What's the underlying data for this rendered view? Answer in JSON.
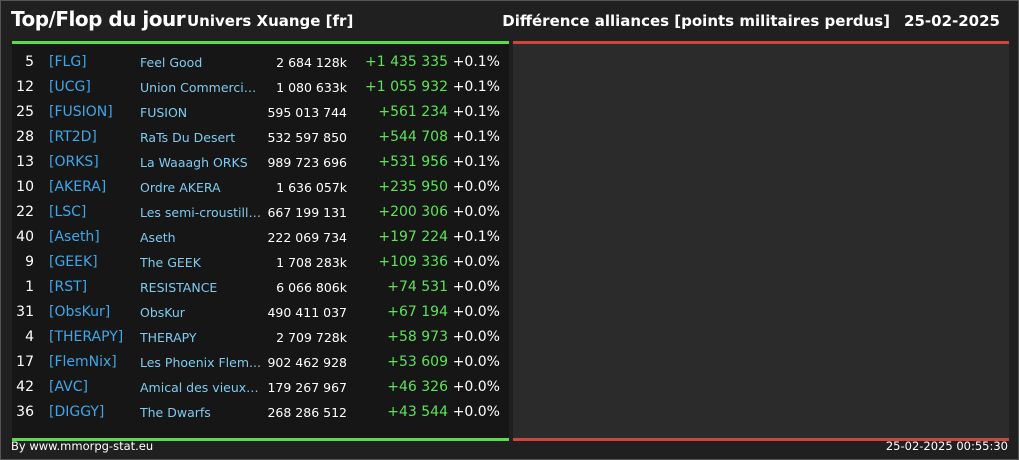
{
  "header": {
    "title": "Top/Flop du jour",
    "universe": "Univers Xuange [fr]",
    "ranking_title": "Différence alliances [points militaires perdus]",
    "date": "25-02-2025"
  },
  "top_rows": [
    {
      "rank": "5",
      "tag": "[FLG]",
      "name": "Feel Good",
      "points": "2 684 128k",
      "diff": "+1 435 335",
      "pct": "+0.1%"
    },
    {
      "rank": "12",
      "tag": "[UCG]",
      "name": "Union Commerciale...",
      "points": "1 080 633k",
      "diff": "+1 055 932",
      "pct": "+0.1%"
    },
    {
      "rank": "25",
      "tag": "[FUSION]",
      "name": "FUSION",
      "points": "595 013 744",
      "diff": "+561 234",
      "pct": "+0.1%"
    },
    {
      "rank": "28",
      "tag": "[RT2D]",
      "name": "RaTs Du Desert",
      "points": "532 597 850",
      "diff": "+544 708",
      "pct": "+0.1%"
    },
    {
      "rank": "13",
      "tag": "[ORKS]",
      "name": "La Waaagh ORKS",
      "points": "989 723 696",
      "diff": "+531 956",
      "pct": "+0.1%"
    },
    {
      "rank": "10",
      "tag": "[AKERA]",
      "name": "Ordre AKERA",
      "points": "1 636 057k",
      "diff": "+235 950",
      "pct": "+0.0%"
    },
    {
      "rank": "22",
      "tag": "[LSC]",
      "name": "Les semi-croustilla...",
      "points": "667 199 131",
      "diff": "+200 306",
      "pct": "+0.0%"
    },
    {
      "rank": "40",
      "tag": "[Aseth]",
      "name": "Aseth",
      "points": "222 069 734",
      "diff": "+197 224",
      "pct": "+0.1%"
    },
    {
      "rank": "9",
      "tag": "[GEEK]",
      "name": "The GEEK",
      "points": "1 708 283k",
      "diff": "+109 336",
      "pct": "+0.0%"
    },
    {
      "rank": "1",
      "tag": "[RST]",
      "name": "RESISTANCE",
      "points": "6 066 806k",
      "diff": "+74 531",
      "pct": "+0.0%"
    },
    {
      "rank": "31",
      "tag": "[ObsKur]",
      "name": "ObsKur",
      "points": "490 411 037",
      "diff": "+67 194",
      "pct": "+0.0%"
    },
    {
      "rank": "4",
      "tag": "[THERAPY]",
      "name": "THERAPY",
      "points": "2 709 728k",
      "diff": "+58 973",
      "pct": "+0.0%"
    },
    {
      "rank": "17",
      "tag": "[FlemNix]",
      "name": "Les Phoenix Flem...",
      "points": "902 462 928",
      "diff": "+53 609",
      "pct": "+0.0%"
    },
    {
      "rank": "42",
      "tag": "[AVC]",
      "name": "Amical des vieux con",
      "points": "179 267 967",
      "diff": "+46 326",
      "pct": "+0.0%"
    },
    {
      "rank": "36",
      "tag": "[DIGGY]",
      "name": "The Dwarfs",
      "points": "268 286 512",
      "diff": "+43 544",
      "pct": "+0.0%"
    }
  ],
  "footer": {
    "credit": "By www.mmorpg-stat.eu",
    "timestamp": "25-02-2025 00:55:30"
  },
  "colors": {
    "top_accent": "#55e04a",
    "flop_accent": "#d0453a",
    "tag": "#3fa7ea",
    "name": "#7fcbf0",
    "positive": "#5ee25a"
  }
}
